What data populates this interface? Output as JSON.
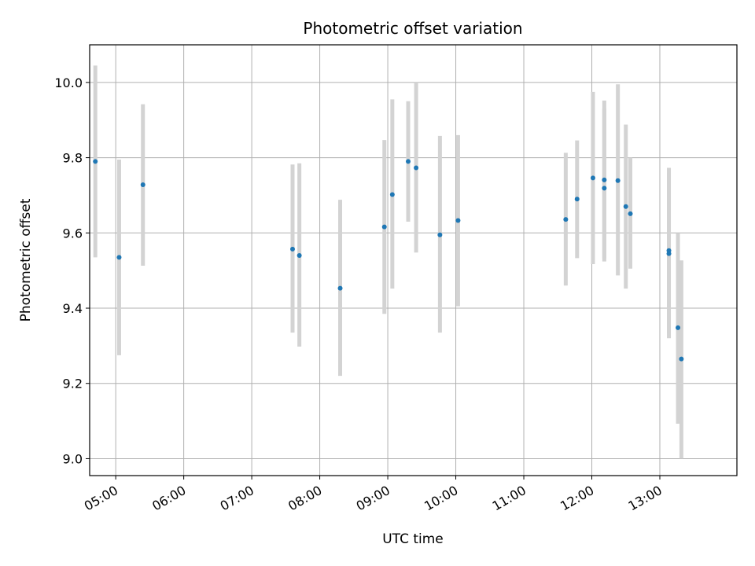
{
  "chart_data": {
    "type": "scatter",
    "title": "Photometric offset variation",
    "xlabel": "UTC time",
    "ylabel": "Photometric offset",
    "xlim": [
      "04:37",
      "14:08"
    ],
    "ylim": [
      8.955,
      10.1
    ],
    "grid": true,
    "x_ticks": [
      "05:00",
      "06:00",
      "07:00",
      "08:00",
      "09:00",
      "10:00",
      "11:00",
      "12:00",
      "13:00"
    ],
    "y_ticks": [
      "9.0",
      "9.2",
      "9.4",
      "9.6",
      "9.8",
      "10.0"
    ],
    "colors": {
      "marker": "#1f77b4",
      "errorbar": "#d3d3d3",
      "grid": "#b0b0b0"
    },
    "points": [
      {
        "x": "04:42",
        "y": 9.79,
        "y_low": 9.535,
        "y_high": 10.045
      },
      {
        "x": "05:03",
        "y": 9.535,
        "y_low": 9.275,
        "y_high": 9.795
      },
      {
        "x": "05:24",
        "y": 9.728,
        "y_low": 9.513,
        "y_high": 9.942
      },
      {
        "x": "07:36",
        "y": 9.557,
        "y_low": 9.335,
        "y_high": 9.782
      },
      {
        "x": "07:42",
        "y": 9.54,
        "y_low": 9.298,
        "y_high": 9.785
      },
      {
        "x": "08:18",
        "y": 9.453,
        "y_low": 9.22,
        "y_high": 9.688
      },
      {
        "x": "08:57",
        "y": 9.616,
        "y_low": 9.385,
        "y_high": 9.847
      },
      {
        "x": "09:04",
        "y": 9.702,
        "y_low": 9.452,
        "y_high": 9.955
      },
      {
        "x": "09:18",
        "y": 9.79,
        "y_low": 9.63,
        "y_high": 9.95
      },
      {
        "x": "09:25",
        "y": 9.773,
        "y_low": 9.548,
        "y_high": 10.0
      },
      {
        "x": "09:46",
        "y": 9.595,
        "y_low": 9.335,
        "y_high": 9.858
      },
      {
        "x": "10:02",
        "y": 9.633,
        "y_low": 9.405,
        "y_high": 9.86
      },
      {
        "x": "11:37",
        "y": 9.636,
        "y_low": 9.46,
        "y_high": 9.813
      },
      {
        "x": "11:47",
        "y": 9.69,
        "y_low": 9.533,
        "y_high": 9.846
      },
      {
        "x": "12:01",
        "y": 9.746,
        "y_low": 9.517,
        "y_high": 9.975
      },
      {
        "x": "12:11",
        "y": 9.741,
        "y_low": 9.531,
        "y_high": 9.952
      },
      {
        "x": "12:11",
        "y": 9.719,
        "y_low": 9.524,
        "y_high": 9.931
      },
      {
        "x": "12:23",
        "y": 9.739,
        "y_low": 9.487,
        "y_high": 9.995
      },
      {
        "x": "12:30",
        "y": 9.67,
        "y_low": 9.452,
        "y_high": 9.888
      },
      {
        "x": "12:34",
        "y": 9.651,
        "y_low": 9.505,
        "y_high": 9.8
      },
      {
        "x": "13:08",
        "y": 9.553,
        "y_low": 9.32,
        "y_high": 9.773
      },
      {
        "x": "13:08",
        "y": 9.545,
        "y_low": 9.335,
        "y_high": 9.76
      },
      {
        "x": "13:16",
        "y": 9.348,
        "y_low": 9.093,
        "y_high": 9.6
      },
      {
        "x": "13:19",
        "y": 9.265,
        "y_low": 9.0,
        "y_high": 9.527
      }
    ]
  }
}
